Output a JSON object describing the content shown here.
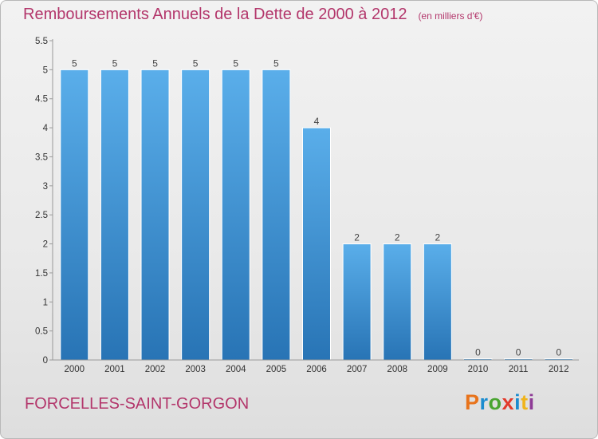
{
  "chart_data": {
    "type": "bar",
    "title": "Remboursements Annuels de la Dette de 2000 à 2012",
    "unit": "(en milliers d'€)",
    "categories": [
      "2000",
      "2001",
      "2002",
      "2003",
      "2004",
      "2005",
      "2006",
      "2007",
      "2008",
      "2009",
      "2010",
      "2011",
      "2012"
    ],
    "values": [
      5,
      5,
      5,
      5,
      5,
      5,
      4,
      2,
      2,
      2,
      0,
      0,
      0
    ],
    "data_labels": [
      "5",
      "5",
      "5",
      "5",
      "5",
      "5",
      "4",
      "2",
      "2",
      "2",
      "0",
      "0",
      "0"
    ],
    "y_ticks": [
      0,
      0.5,
      1,
      1.5,
      2,
      2.5,
      3,
      3.5,
      4,
      4.5,
      5,
      5.5
    ],
    "y_tick_labels": [
      "0",
      "0.5",
      "1",
      "1.5",
      "2",
      "2.5",
      "3",
      "3.5",
      "4",
      "4.5",
      "5",
      "5.5"
    ],
    "ylim": [
      0,
      5.5
    ],
    "grid": false,
    "xlabel": "",
    "ylabel": "",
    "colors": {
      "bar": "#3f8fd2",
      "title": "#b3366b"
    }
  },
  "footer": {
    "commune": "FORCELLES-SAINT-GORGON",
    "logo": "Proxiti",
    "logo_colors": [
      "#e8731b",
      "#1b8ccf",
      "#4aa532",
      "#e23a2b",
      "#1b8ccf",
      "#f0b41c",
      "#8e3b96"
    ]
  }
}
